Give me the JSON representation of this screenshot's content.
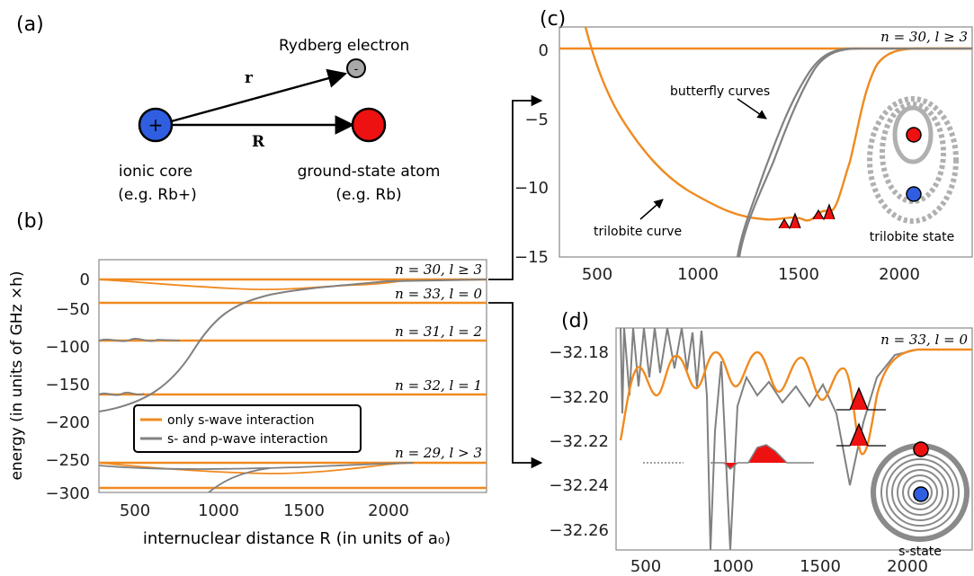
{
  "panels": {
    "a": "(a)",
    "b": "(b)",
    "c": "(c)",
    "d": "(d)"
  },
  "diagram_a": {
    "rydberg_electron": "Rydberg electron",
    "electron_sign": "-",
    "core_sign": "+",
    "vec_r": "r",
    "vec_R": "R",
    "core_label": "ionic core",
    "core_example": "(e.g. Rb+)",
    "atom_label": "ground-state atom",
    "atom_example": "(e.g. Rb)",
    "colors": {
      "core": "#2f5fe0",
      "atom": "#ee1111",
      "electron": "#a8a8a8"
    }
  },
  "panel_b": {
    "ylabel": "energy (in units of GHz ×h)",
    "xlabel": "internuclear distance R (in units of a₀)",
    "yticks": [
      "0",
      "−50",
      "−100",
      "−150",
      "−200",
      "−250",
      "−300"
    ],
    "xticks": [
      "500",
      "1000",
      "1500",
      "2000"
    ],
    "levels": [
      "n = 30, l ≥ 3",
      "n = 33, l = 0",
      "n = 31, l = 2",
      "n = 32, l = 1",
      "n = 29, l > 3"
    ],
    "legend": [
      "only s-wave interaction",
      "s- and p-wave interaction"
    ]
  },
  "panel_c": {
    "yticks": [
      "0",
      "−5",
      "−10",
      "−15"
    ],
    "xticks": [
      "500",
      "1000",
      "1500",
      "2000"
    ],
    "level": "n = 30, l ≥ 3",
    "butterfly": "butterfly curves",
    "trilobite": "trilobite curve",
    "state": "trilobite state"
  },
  "panel_d": {
    "yticks": [
      "−32.18",
      "−32.20",
      "−32.22",
      "−32.24",
      "−32.26"
    ],
    "xticks": [
      "500",
      "1000",
      "1500",
      "2000"
    ],
    "level": "n = 33, l = 0",
    "state": "s-state"
  },
  "colors": {
    "orange": "#f08a20",
    "gray": "#808080",
    "red": "#ee1111",
    "blue": "#2f5fe0"
  }
}
